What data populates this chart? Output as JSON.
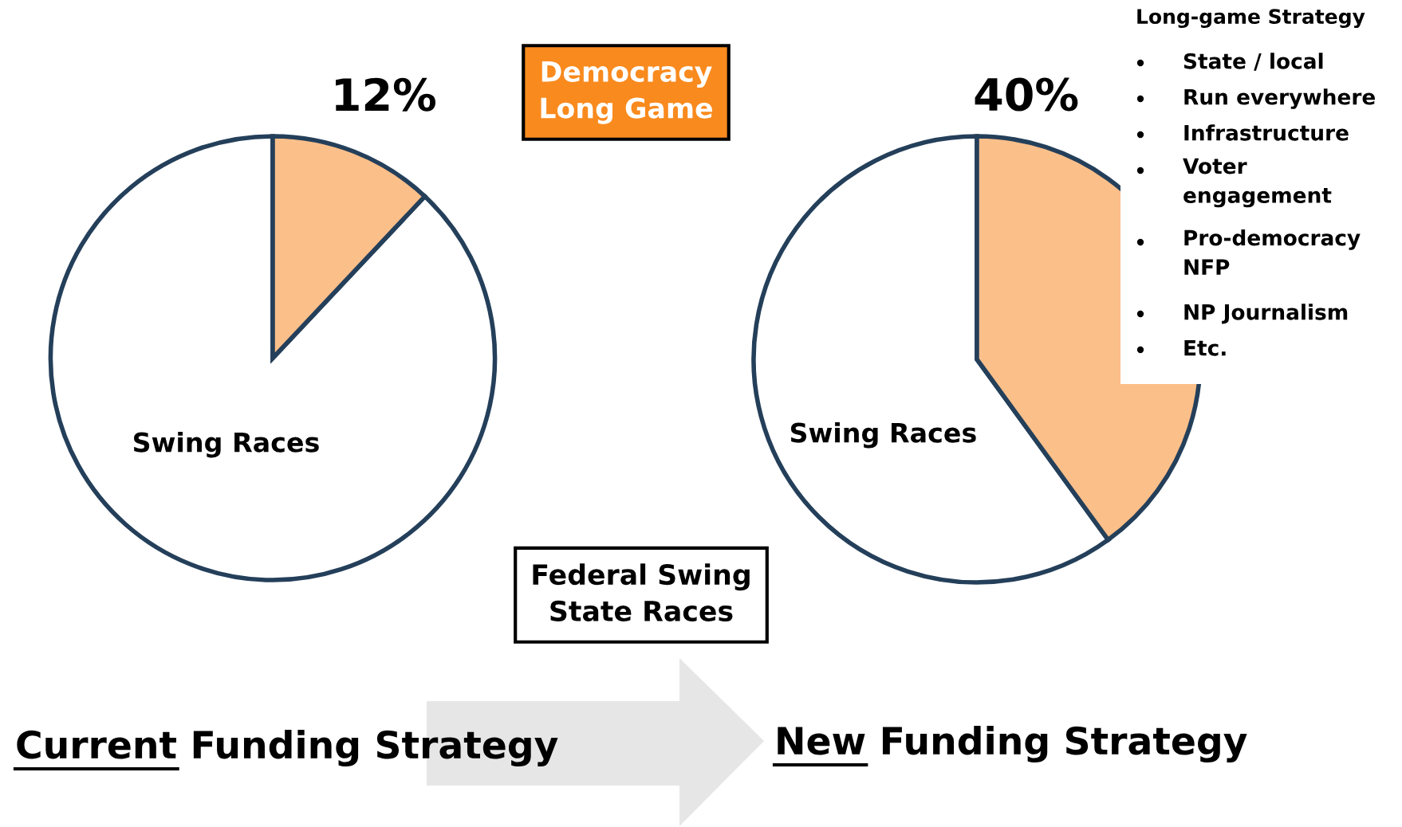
{
  "chart_data": [
    {
      "type": "pie",
      "title": "Current Funding Strategy",
      "categories": [
        null,
        "Swing Races"
      ],
      "values": [
        12,
        88
      ],
      "colors": [
        "#fbbf8a",
        "#ffffff"
      ],
      "value_labels": [
        "12%",
        null
      ],
      "annotations": [
        "Democracy\nLong Game",
        "Federal Swing\nState Races"
      ]
    },
    {
      "type": "pie",
      "title": "New Funding Strategy",
      "categories": [
        null,
        "Swing Races"
      ],
      "values": [
        40,
        60
      ],
      "colors": [
        "#fbbf8a",
        "#ffffff"
      ],
      "value_labels": [
        "40%",
        null
      ],
      "annotations": [
        "Long-game Strategy",
        "State / local",
        "Run everywhere",
        "Infrastructure",
        "Voter\nengagement",
        "Pro-democracy\nNFP",
        "NP Journalism",
        "Etc."
      ]
    }
  ]
}
